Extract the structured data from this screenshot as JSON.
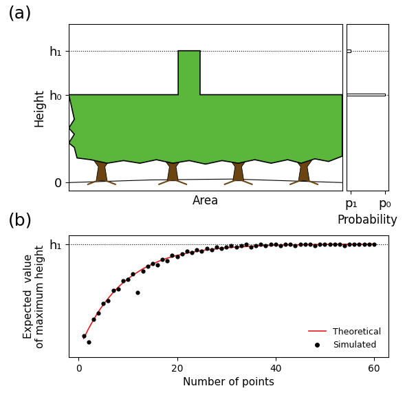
{
  "chart_data": [
    {
      "type": "profile",
      "label": "(a)",
      "xlabel": "Area",
      "ylabel": "Height",
      "levels": [
        1,
        1.5
      ],
      "color": "#5ab73c",
      "xlim": [
        0,
        1
      ],
      "ylim": [
        -0.094,
        1.8
      ],
      "yticks": [
        0,
        {
          "value": 1,
          "label": "h₀"
        },
        {
          "value": 1.5,
          "label": "h₁"
        }
      ],
      "tick_labels": "y"
    },
    {
      "type": "bar",
      "orientation": "horizontal",
      "xlabel": "Probability",
      "y": [
        1,
        1.5
      ],
      "values": [
        1,
        0.12
      ],
      "color": "#ffffff",
      "xlim": [
        0,
        1.1
      ],
      "ylim": [
        -0.094,
        1.8
      ],
      "xticks": [
        {
          "value": 0.12,
          "label": "p₁"
        },
        {
          "value": 1,
          "label": "p₀"
        }
      ],
      "tick_labels": "x"
    },
    {
      "type": "scatter",
      "label": "(b)",
      "xlabel": "Number of points",
      "ylabel": "Expected  value\nof maximum height",
      "xlim": [
        -2,
        63
      ],
      "xticks": [
        0,
        20,
        40,
        60
      ],
      "ylim": [
        0.6,
        1.03
      ],
      "yticks": [
        {
          "value": 1,
          "label": "h₁"
        }
      ],
      "legend": "lower right",
      "series": [
        {
          "name": "Theoretical",
          "type": "line",
          "color": "#e41a1c",
          "line_style": "solid",
          "x": [
            1,
            2,
            3,
            4,
            5,
            6,
            7,
            8,
            9,
            10,
            11,
            12,
            13,
            14,
            15,
            16,
            17,
            18,
            19,
            20,
            21,
            22,
            23,
            24,
            25,
            26,
            27,
            28,
            29,
            30,
            31,
            32,
            33,
            34,
            35,
            36,
            37,
            38,
            39,
            40,
            41,
            42,
            43,
            44,
            45,
            46,
            47,
            48,
            49,
            50,
            51,
            52,
            53,
            54,
            55,
            56,
            57,
            58,
            59,
            60
          ],
          "values": [
            0.666,
            0.701,
            0.732,
            0.761,
            0.786,
            0.808,
            0.829,
            0.847,
            0.863,
            0.877,
            0.89,
            0.901,
            0.912,
            0.921,
            0.929,
            0.937,
            0.944,
            0.95,
            0.955,
            0.96,
            0.963,
            0.968,
            0.971,
            0.974,
            0.977,
            0.979,
            0.981,
            0.983,
            0.985,
            0.987,
            0.988,
            0.989,
            0.99,
            0.991,
            0.992,
            0.993,
            0.994,
            0.995,
            0.995,
            0.996,
            0.996,
            0.997,
            0.997,
            0.997,
            0.997,
            0.998,
            0.998,
            0.998,
            0.998,
            0.998,
            0.999,
            0.999,
            0.999,
            0.999,
            0.999,
            0.999,
            0.999,
            0.999,
            1.0,
            1.0
          ]
        },
        {
          "name": "Simulated",
          "type": "scatter",
          "color": "#000000",
          "marker": "o",
          "x": [
            1,
            2,
            3,
            4,
            5,
            6,
            7,
            8,
            9,
            10,
            11,
            12,
            13,
            14,
            15,
            16,
            17,
            18,
            19,
            20,
            21,
            22,
            23,
            24,
            25,
            26,
            27,
            28,
            29,
            30,
            31,
            32,
            33,
            34,
            35,
            36,
            37,
            38,
            39,
            40,
            41,
            42,
            43,
            44,
            45,
            46,
            47,
            48,
            49,
            50,
            51,
            52,
            53,
            54,
            55,
            56,
            57,
            58,
            59,
            60
          ],
          "values": [
            0.675,
            0.655,
            0.735,
            0.755,
            0.79,
            0.8,
            0.835,
            0.84,
            0.87,
            0.875,
            0.895,
            0.83,
            0.905,
            0.92,
            0.93,
            0.925,
            0.945,
            0.94,
            0.96,
            0.955,
            0.965,
            0.975,
            0.97,
            0.98,
            0.975,
            0.985,
            0.98,
            0.99,
            0.985,
            0.99,
            0.995,
            0.99,
            0.995,
            1.0,
            0.99,
            0.995,
            1.0,
            0.995,
            1.0,
            1.0,
            0.995,
            1.0,
            1.0,
            0.995,
            1.0,
            1.0,
            1.0,
            0.995,
            1.0,
            1.0,
            1.0,
            1.0,
            1.0,
            0.995,
            1.0,
            1.0,
            1.0,
            1.0,
            1.0,
            1.0
          ]
        }
      ]
    }
  ]
}
